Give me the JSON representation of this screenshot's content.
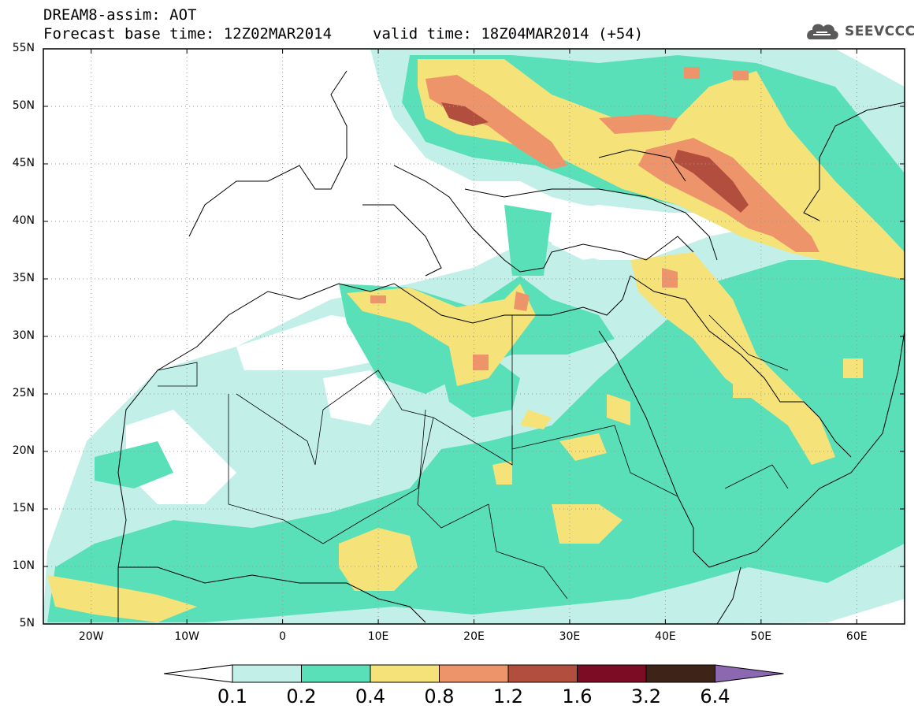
{
  "header": {
    "title": "DREAM8-assim: AOT",
    "base_time": "Forecast base time: 12Z02MAR2014",
    "valid_time": "valid time: 18Z04MAR2014 (+54)"
  },
  "logo": {
    "text": "SEEVCCC",
    "icon": "cloud-icon"
  },
  "axes": {
    "y_ticks": [
      "55N",
      "50N",
      "45N",
      "40N",
      "35N",
      "30N",
      "25N",
      "20N",
      "15N",
      "10N",
      "5N"
    ],
    "x_ticks": [
      "20W",
      "10W",
      "0",
      "10E",
      "20E",
      "30E",
      "40E",
      "50E",
      "60E"
    ],
    "lon_range": [
      -25,
      65
    ],
    "lat_range": [
      5,
      55
    ],
    "grid": "dotted"
  },
  "colorbar": {
    "labels": [
      "0.1",
      "0.2",
      "0.4",
      "0.8",
      "1.2",
      "1.6",
      "3.2",
      "6.4"
    ],
    "colors": [
      "#ffffff",
      "#c2f0e8",
      "#5ae0b8",
      "#f5e37a",
      "#ee946a",
      "#b24e3e",
      "#7c0c24",
      "#3e2418",
      "#8c68b0"
    ]
  }
}
